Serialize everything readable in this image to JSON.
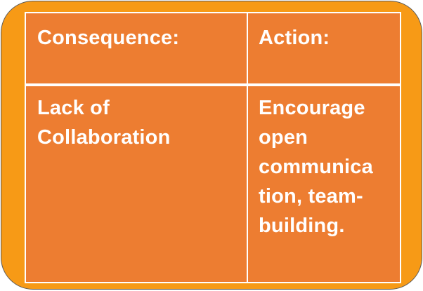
{
  "colors": {
    "frame": "#f79a16",
    "table": "#ed7d31",
    "text": "#ffffff",
    "grid": "#ffffff"
  },
  "table": {
    "headers": [
      "Consequence:",
      "Action:"
    ],
    "rows": [
      {
        "consequence": [
          "Lack of",
          "Collaboration"
        ],
        "action": [
          "Encourage",
          "open",
          "communica",
          "tion, team-",
          "building."
        ]
      }
    ]
  }
}
